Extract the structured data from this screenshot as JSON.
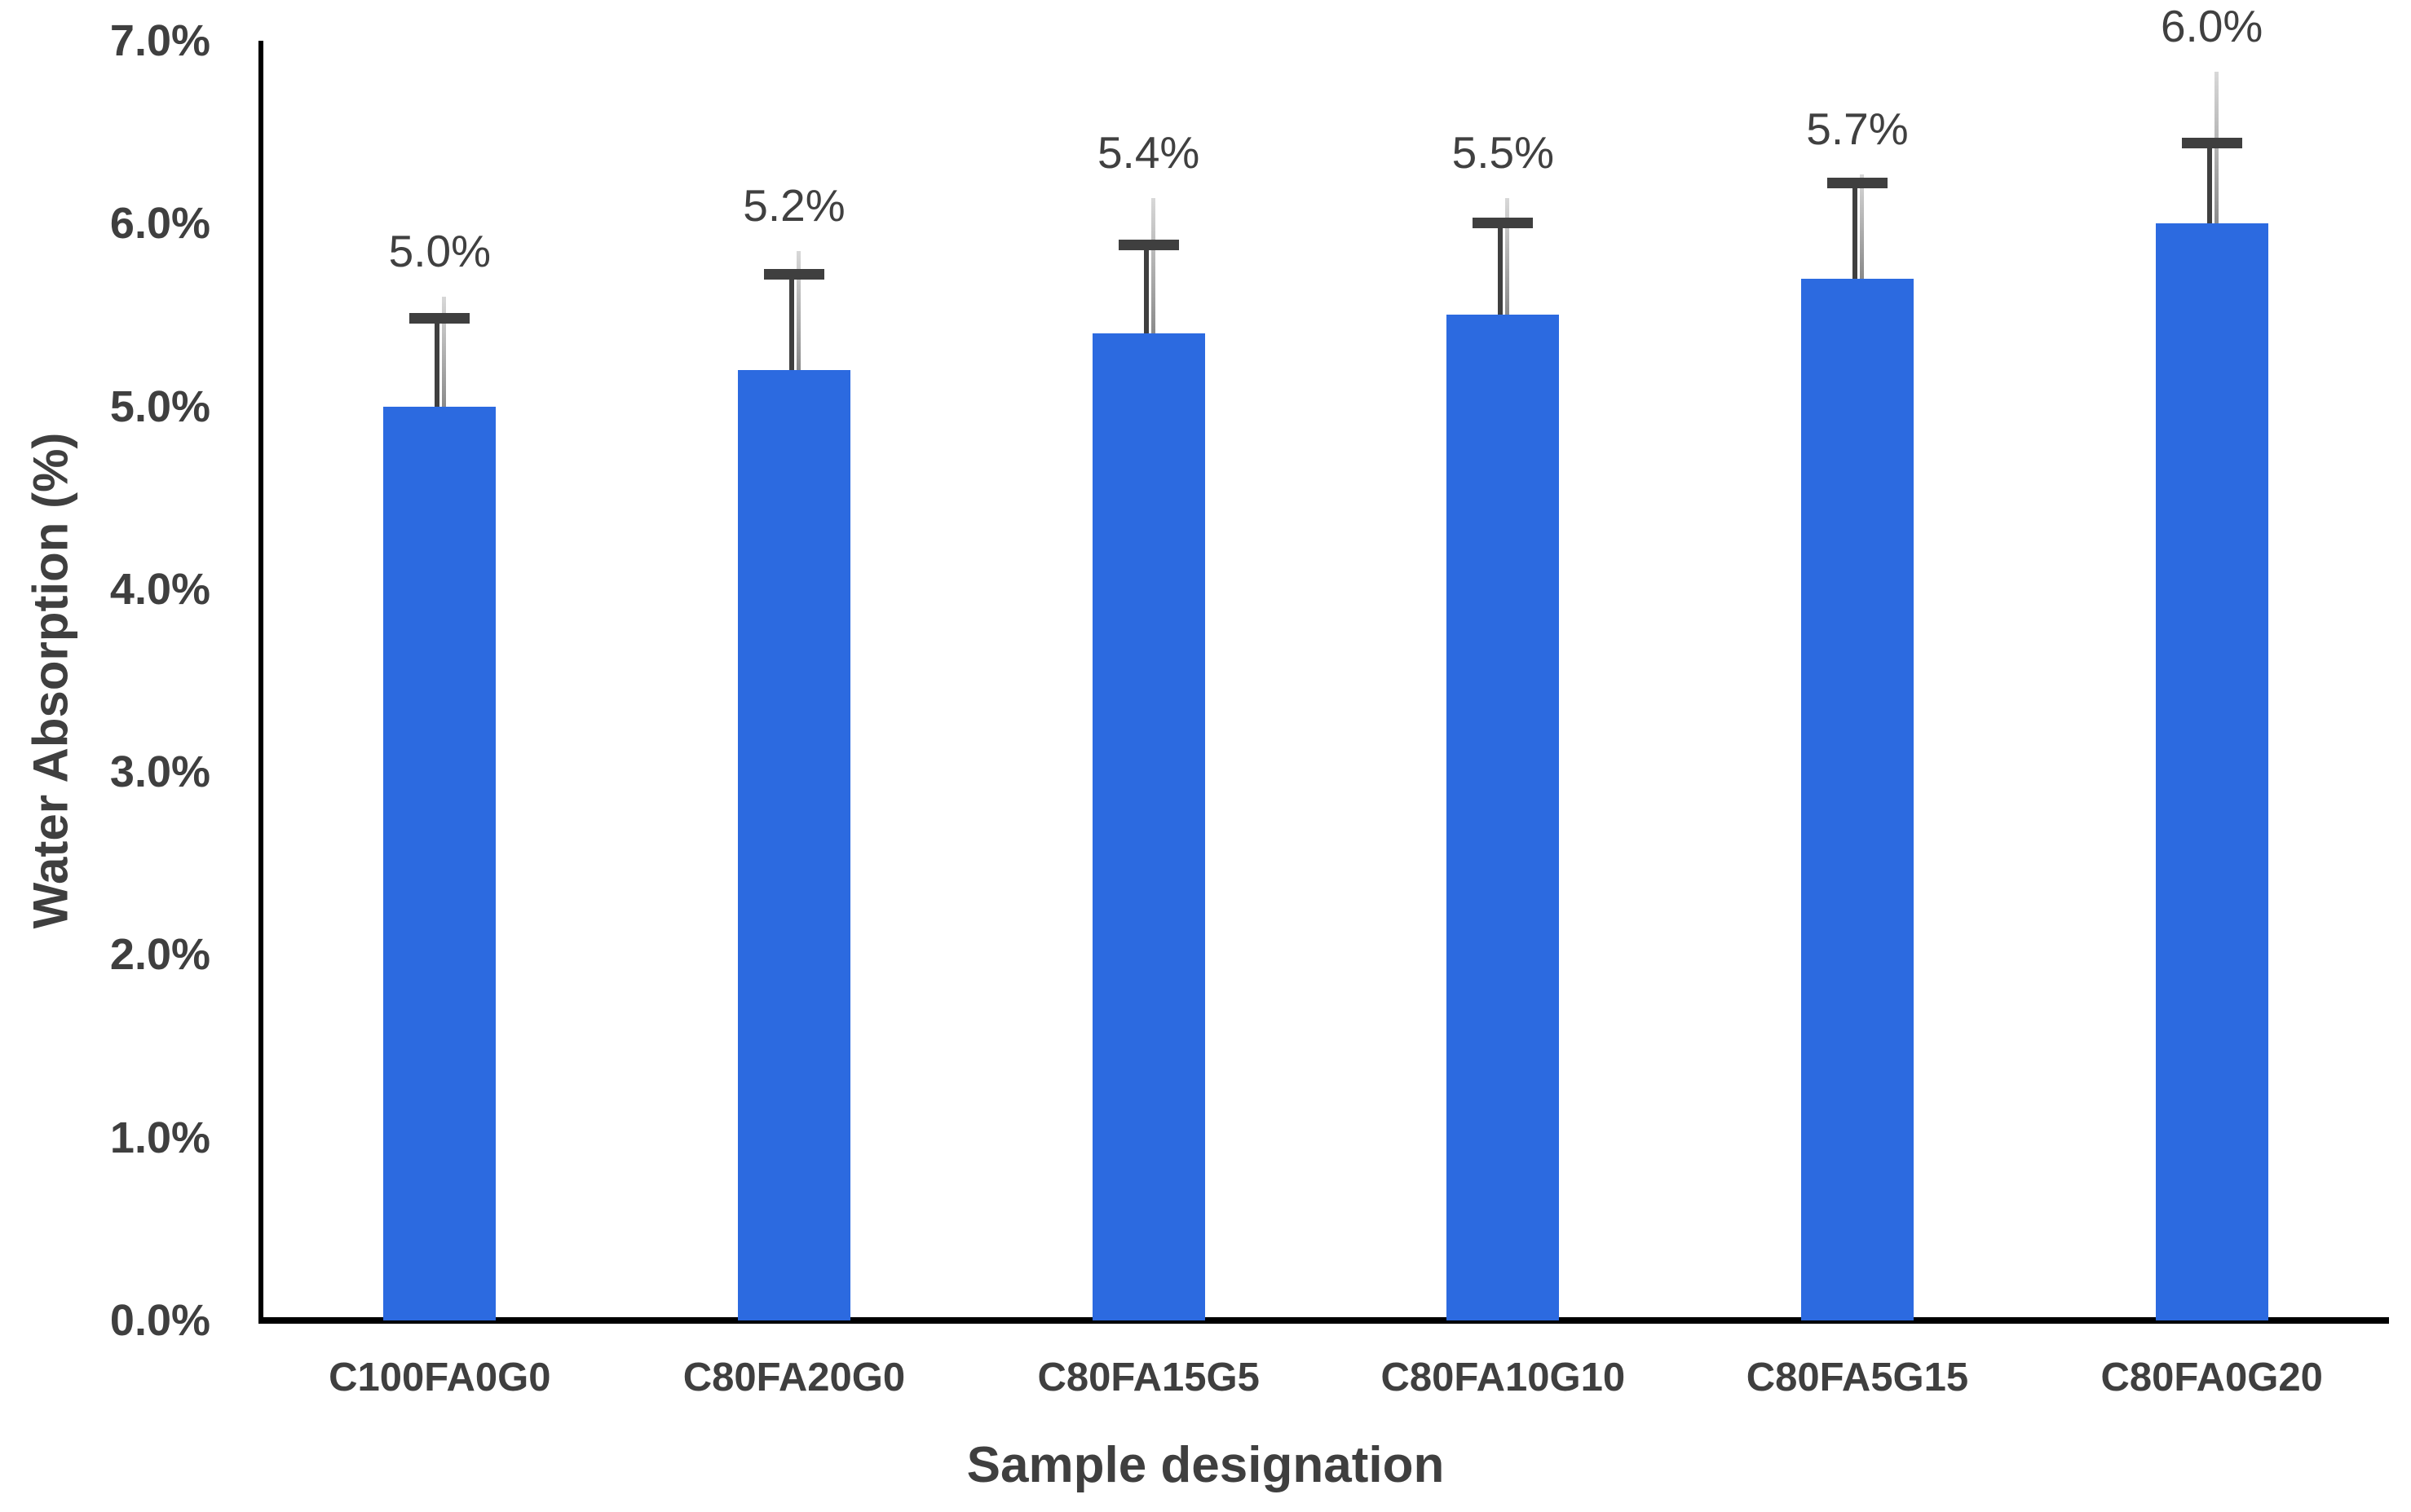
{
  "chart_data": {
    "type": "bar",
    "title": "",
    "xlabel": "Sample designation",
    "ylabel": "Water Absorption (%)",
    "ylim": [
      0,
      7
    ],
    "grid": false,
    "legend": "none",
    "bar_color": "#2c6ae0",
    "error_bar_color": "#3f3f3f",
    "whisker_color_top": "#d8d8d8",
    "whisker_color_bottom": "#7e7e7e",
    "axis_text_color": "#3f3f3f",
    "yticks": [
      {
        "value": 7,
        "label": "7.0%"
      },
      {
        "value": 6,
        "label": "6.0%"
      },
      {
        "value": 5,
        "label": "5.0%"
      },
      {
        "value": 4,
        "label": "4.0%"
      },
      {
        "value": 3,
        "label": "3.0%"
      },
      {
        "value": 2,
        "label": "2.0%"
      },
      {
        "value": 1,
        "label": "1.0%"
      },
      {
        "value": 0,
        "label": "0.0%"
      }
    ],
    "categories": [
      "C100FA0G0",
      "C80FA20G0",
      "C80FA15G5",
      "C80FA10G10",
      "C80FA5G15",
      "C80FA0G20"
    ],
    "values": [
      5.0,
      5.2,
      5.4,
      5.5,
      5.7,
      6.0
    ],
    "points": [
      {
        "category": "C100FA0G0",
        "value": 5.0,
        "value_label": "5.0%",
        "whisker_top": 5.6,
        "cap_top": 5.48,
        "cap_bottom": 4.9
      },
      {
        "category": "C80FA20G0",
        "value": 5.2,
        "value_label": "5.2%",
        "whisker_top": 5.85,
        "cap_top": 5.72,
        "cap_bottom": 5.1
      },
      {
        "category": "C80FA15G5",
        "value": 5.4,
        "value_label": "5.4%",
        "whisker_top": 6.14,
        "cap_top": 5.88,
        "cap_bottom": 5.28
      },
      {
        "category": "C80FA10G10",
        "value": 5.5,
        "value_label": "5.5%",
        "whisker_top": 6.14,
        "cap_top": 6.0,
        "cap_bottom": 5.4
      },
      {
        "category": "C80FA5G15",
        "value": 5.7,
        "value_label": "5.7%",
        "whisker_top": 6.27,
        "cap_top": 6.22,
        "cap_bottom": 5.62
      },
      {
        "category": "C80FA0G20",
        "value": 6.0,
        "value_label": "6.0%",
        "whisker_top": 6.83,
        "cap_top": 6.44,
        "cap_bottom": 5.85
      }
    ]
  }
}
